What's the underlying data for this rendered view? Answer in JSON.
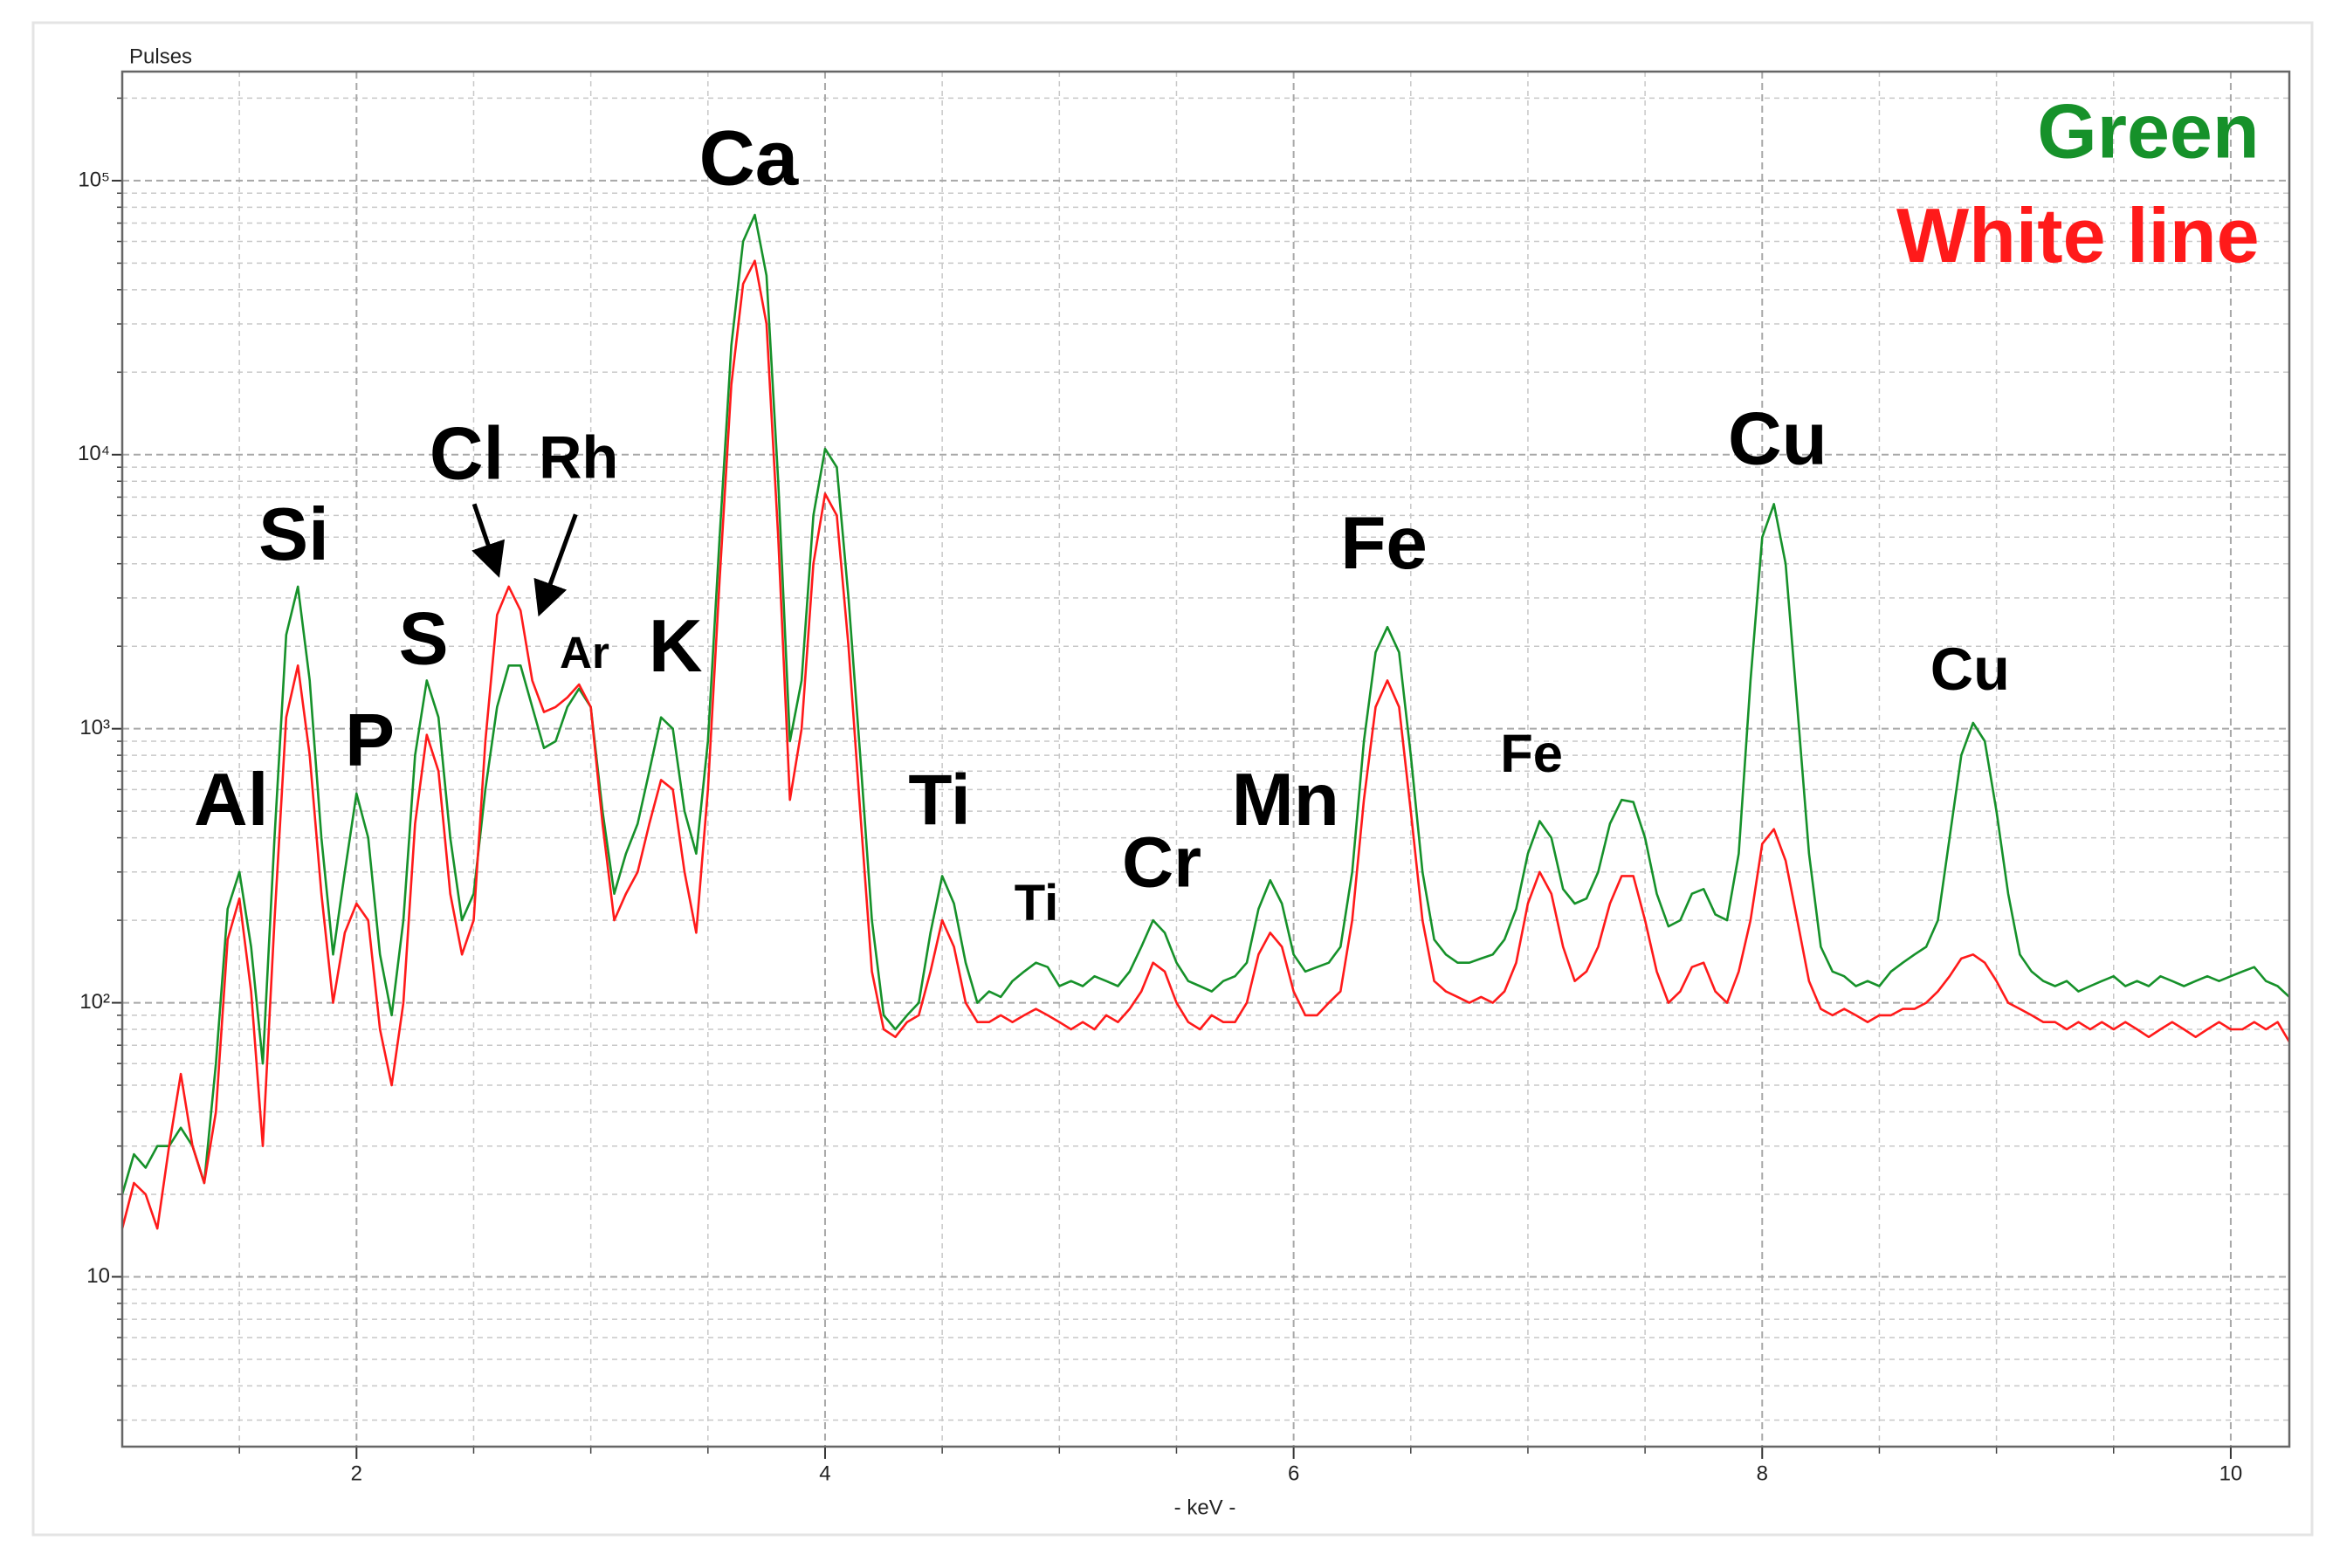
{
  "chart_data": {
    "type": "line",
    "y_axis_label": "Pulses",
    "x_axis_label": "- keV -",
    "yscale": "log",
    "grid": true,
    "legend_position": "top-right",
    "xlim": [
      1.0,
      10.25
    ],
    "ylim": [
      2.4,
      250000
    ],
    "xticks": [
      2,
      4,
      6,
      8,
      10
    ],
    "xminorticks": [
      1.5,
      2.5,
      3,
      3.5,
      4.5,
      5,
      5.5,
      6.5,
      7,
      7.5,
      8.5,
      9,
      9.5
    ],
    "yticks": [
      10,
      {
        "value": 100,
        "label": "10²"
      },
      {
        "value": 1000,
        "label": "10³"
      },
      {
        "value": 10000,
        "label": "10⁴"
      },
      {
        "value": 100000,
        "label": "10⁵"
      }
    ],
    "yminorticks": [
      3,
      4,
      5,
      6,
      7,
      8,
      9,
      20,
      30,
      40,
      50,
      60,
      70,
      80,
      90,
      200,
      300,
      400,
      500,
      600,
      700,
      800,
      900,
      2000,
      3000,
      4000,
      5000,
      6000,
      7000,
      8000,
      9000,
      20000,
      30000,
      40000,
      50000,
      60000,
      70000,
      80000,
      90000,
      200000
    ],
    "annotations": [
      "Al",
      "Si",
      "P",
      "S",
      "Cl",
      "Rh",
      "Ar",
      "K",
      "Ca",
      "Ti",
      "Ti",
      "Cr",
      "Mn",
      "Fe",
      "Fe",
      "Cu",
      "Cu"
    ],
    "x": [
      1.0,
      1.05,
      1.1,
      1.15,
      1.2,
      1.25,
      1.3,
      1.35,
      1.4,
      1.45,
      1.5,
      1.55,
      1.6,
      1.65,
      1.7,
      1.75,
      1.8,
      1.85,
      1.9,
      1.95,
      2.0,
      2.05,
      2.1,
      2.15,
      2.2,
      2.25,
      2.3,
      2.35,
      2.4,
      2.45,
      2.5,
      2.55,
      2.6,
      2.65,
      2.7,
      2.75,
      2.8,
      2.85,
      2.9,
      2.95,
      3.0,
      3.05,
      3.1,
      3.15,
      3.2,
      3.25,
      3.3,
      3.35,
      3.4,
      3.45,
      3.5,
      3.55,
      3.6,
      3.65,
      3.7,
      3.75,
      3.8,
      3.85,
      3.9,
      3.95,
      4.0,
      4.05,
      4.1,
      4.15,
      4.2,
      4.25,
      4.3,
      4.35,
      4.4,
      4.45,
      4.5,
      4.55,
      4.6,
      4.65,
      4.7,
      4.75,
      4.8,
      4.85,
      4.9,
      4.95,
      5.0,
      5.05,
      5.1,
      5.15,
      5.2,
      5.25,
      5.3,
      5.35,
      5.4,
      5.45,
      5.5,
      5.55,
      5.6,
      5.65,
      5.7,
      5.75,
      5.8,
      5.85,
      5.9,
      5.95,
      6.0,
      6.05,
      6.1,
      6.15,
      6.2,
      6.25,
      6.3,
      6.35,
      6.4,
      6.45,
      6.5,
      6.55,
      6.6,
      6.65,
      6.7,
      6.75,
      6.8,
      6.85,
      6.9,
      6.95,
      7.0,
      7.05,
      7.1,
      7.15,
      7.2,
      7.25,
      7.3,
      7.35,
      7.4,
      7.45,
      7.5,
      7.55,
      7.6,
      7.65,
      7.7,
      7.75,
      7.8,
      7.85,
      7.9,
      7.95,
      8.0,
      8.05,
      8.1,
      8.15,
      8.2,
      8.25,
      8.3,
      8.35,
      8.4,
      8.45,
      8.5,
      8.55,
      8.6,
      8.65,
      8.7,
      8.75,
      8.8,
      8.85,
      8.9,
      8.95,
      9.0,
      9.05,
      9.1,
      9.15,
      9.2,
      9.25,
      9.3,
      9.35,
      9.4,
      9.45,
      9.5,
      9.55,
      9.6,
      9.65,
      9.7,
      9.75,
      9.8,
      9.85,
      9.9,
      9.95,
      10.0,
      10.05,
      10.1,
      10.15,
      10.2,
      10.25
    ],
    "series": [
      {
        "name": "Green",
        "color": "#16912a",
        "values": [
          20,
          28,
          25,
          30,
          30,
          35,
          30,
          22,
          60,
          220,
          300,
          160,
          60,
          400,
          2200,
          3300,
          1500,
          400,
          150,
          300,
          580,
          400,
          150,
          90,
          200,
          800,
          1500,
          1100,
          400,
          200,
          250,
          600,
          1200,
          1700,
          1700,
          1200,
          850,
          900,
          1200,
          1400,
          1200,
          500,
          250,
          350,
          450,
          700,
          1100,
          1000,
          500,
          350,
          900,
          5000,
          25000,
          60000,
          75000,
          45000,
          8000,
          900,
          1500,
          6000,
          10500,
          9000,
          3000,
          800,
          200,
          90,
          80,
          90,
          100,
          180,
          290,
          230,
          140,
          100,
          110,
          105,
          120,
          130,
          140,
          135,
          115,
          120,
          115,
          125,
          120,
          115,
          130,
          160,
          200,
          180,
          140,
          120,
          115,
          110,
          120,
          125,
          140,
          220,
          280,
          230,
          150,
          130,
          135,
          140,
          160,
          300,
          900,
          1900,
          2350,
          1900,
          800,
          300,
          170,
          150,
          140,
          140,
          145,
          150,
          170,
          220,
          350,
          460,
          400,
          260,
          230,
          240,
          300,
          450,
          550,
          540,
          400,
          250,
          190,
          200,
          250,
          260,
          210,
          200,
          350,
          1500,
          5000,
          6600,
          4000,
          1200,
          350,
          160,
          130,
          125,
          115,
          120,
          115,
          130,
          140,
          150,
          160,
          200,
          400,
          800,
          1050,
          900,
          500,
          250,
          150,
          130,
          120,
          115,
          120,
          110,
          115,
          120,
          125,
          115,
          120,
          115,
          125,
          120,
          115,
          120,
          125,
          120,
          125,
          130,
          135,
          120,
          115,
          105
        ]
      },
      {
        "name": "White line",
        "color": "#ff1a1a",
        "values": [
          15,
          22,
          20,
          15,
          30,
          55,
          30,
          22,
          40,
          170,
          240,
          110,
          30,
          200,
          1100,
          1700,
          800,
          250,
          100,
          180,
          230,
          200,
          80,
          50,
          100,
          450,
          950,
          700,
          250,
          150,
          200,
          900,
          2600,
          3300,
          2700,
          1500,
          1150,
          1200,
          1300,
          1450,
          1200,
          450,
          200,
          250,
          300,
          450,
          650,
          600,
          300,
          180,
          600,
          3500,
          18000,
          42000,
          51000,
          30000,
          5000,
          550,
          1000,
          4000,
          7200,
          6000,
          2000,
          500,
          130,
          80,
          75,
          85,
          90,
          130,
          200,
          160,
          100,
          85,
          85,
          90,
          85,
          90,
          95,
          90,
          85,
          80,
          85,
          80,
          90,
          85,
          95,
          110,
          140,
          130,
          100,
          85,
          80,
          90,
          85,
          85,
          100,
          150,
          180,
          160,
          110,
          90,
          90,
          100,
          110,
          200,
          550,
          1200,
          1500,
          1200,
          500,
          200,
          120,
          110,
          105,
          100,
          105,
          100,
          110,
          140,
          230,
          300,
          250,
          160,
          120,
          130,
          160,
          230,
          290,
          290,
          200,
          130,
          100,
          110,
          135,
          140,
          110,
          100,
          130,
          200,
          380,
          430,
          330,
          200,
          120,
          95,
          90,
          95,
          90,
          85,
          90,
          90,
          95,
          95,
          100,
          110,
          125,
          145,
          150,
          140,
          120,
          100,
          95,
          90,
          85,
          85,
          80,
          85,
          80,
          85,
          80,
          85,
          80,
          75,
          80,
          85,
          80,
          75,
          80,
          85,
          80,
          80,
          85,
          80,
          85,
          72
        ]
      }
    ]
  }
}
